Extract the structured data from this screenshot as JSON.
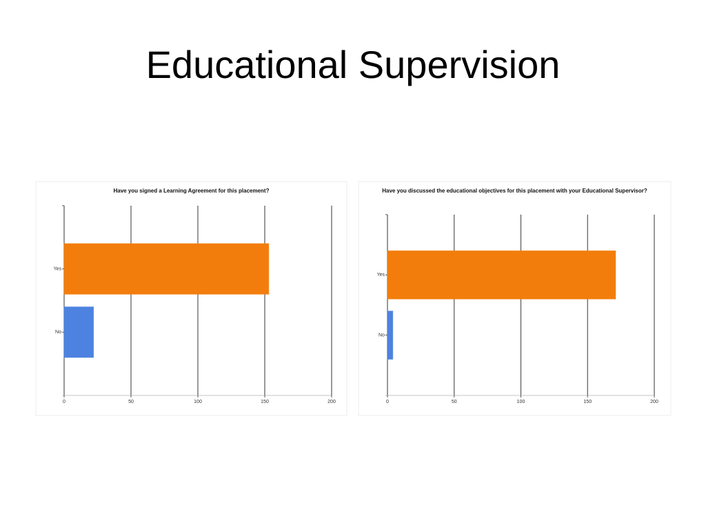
{
  "title": "Educational Supervision",
  "chart_data": [
    {
      "type": "bar",
      "orientation": "horizontal",
      "title": "Have you signed a Learning Agreement for this placement?",
      "categories": [
        "Yes",
        "No"
      ],
      "values": [
        153,
        22
      ],
      "colors": [
        "#f27d0c",
        "#4d82e0"
      ],
      "xlim": [
        0,
        200
      ],
      "xticks": [
        0,
        50,
        100,
        150,
        200
      ],
      "grid": true
    },
    {
      "type": "bar",
      "orientation": "horizontal",
      "title": "Have you discussed the educational objectives for this placement with your Educational Supervisor?",
      "categories": [
        "Yes",
        "No"
      ],
      "values": [
        171,
        4
      ],
      "colors": [
        "#f27d0c",
        "#4d82e0"
      ],
      "xlim": [
        0,
        200
      ],
      "xticks": [
        0,
        50,
        100,
        150,
        200
      ],
      "grid": true
    }
  ]
}
